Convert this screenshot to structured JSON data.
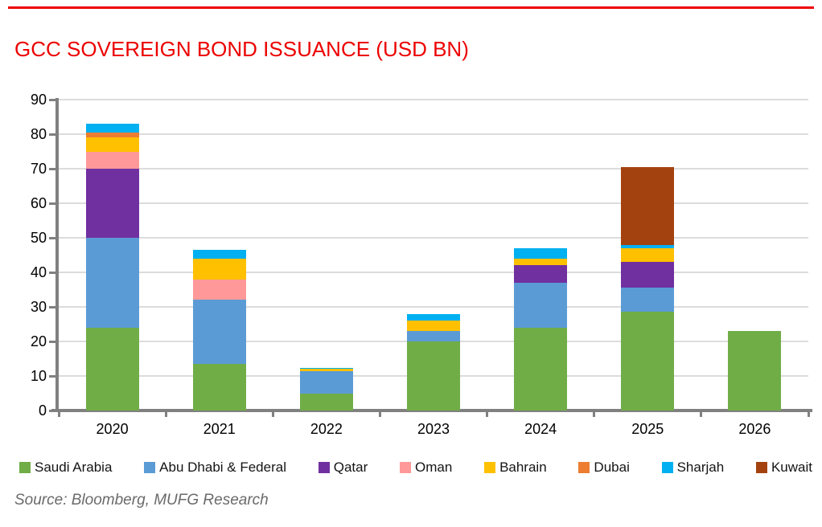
{
  "page": {
    "title": "GCC SOVEREIGN BOND ISSUANCE (USD BN)",
    "source": "Source: Bloomberg, MUFG Research"
  },
  "colors": {
    "accent_red": "#EC0000",
    "axis_line": "#808080",
    "gridline": "#DCDCDC",
    "axis_text": "#000000",
    "legend_text": "#141414",
    "source_text": "#6A6A6A"
  },
  "chart_data": {
    "type": "bar",
    "stacked": true,
    "title": "GCC SOVEREIGN BOND ISSUANCE (USD BN)",
    "categories": [
      "2020",
      "2021",
      "2022",
      "2023",
      "2024",
      "2025",
      "2026"
    ],
    "series": [
      {
        "name": "Saudi Arabia",
        "color": "#70AD47",
        "values": [
          24,
          13.5,
          5,
          20,
          24,
          28.5,
          23
        ]
      },
      {
        "name": "Abu Dhabi & Federal",
        "color": "#5B9BD5",
        "values": [
          26,
          18.5,
          6.5,
          3,
          13,
          7,
          0
        ]
      },
      {
        "name": "Qatar",
        "color": "#7030A0",
        "values": [
          20,
          0,
          0,
          0,
          5,
          7.5,
          0
        ]
      },
      {
        "name": "Oman",
        "color": "#FF9999",
        "values": [
          5,
          6,
          0,
          0,
          0,
          0,
          0
        ]
      },
      {
        "name": "Bahrain",
        "color": "#FFC000",
        "values": [
          4,
          6,
          0.5,
          3,
          2,
          4,
          0
        ]
      },
      {
        "name": "Dubai",
        "color": "#ED7D31",
        "values": [
          1.5,
          0,
          0,
          0,
          0,
          0,
          0
        ]
      },
      {
        "name": "Sharjah",
        "color": "#00B0F0",
        "values": [
          2.5,
          2.5,
          0.3,
          2,
          3,
          1,
          0
        ]
      },
      {
        "name": "Kuwait",
        "color": "#A4420F",
        "values": [
          0,
          0,
          0,
          0,
          0,
          22.5,
          0
        ]
      }
    ],
    "totals": [
      83,
      46.5,
      12.3,
      28,
      47,
      70.5,
      23
    ],
    "xlabel": "",
    "ylabel": "",
    "ylim": [
      0,
      90
    ],
    "yticks": [
      0,
      10,
      20,
      30,
      40,
      50,
      60,
      70,
      80,
      90
    ],
    "grid": "horizontal",
    "legend_position": "bottom"
  }
}
